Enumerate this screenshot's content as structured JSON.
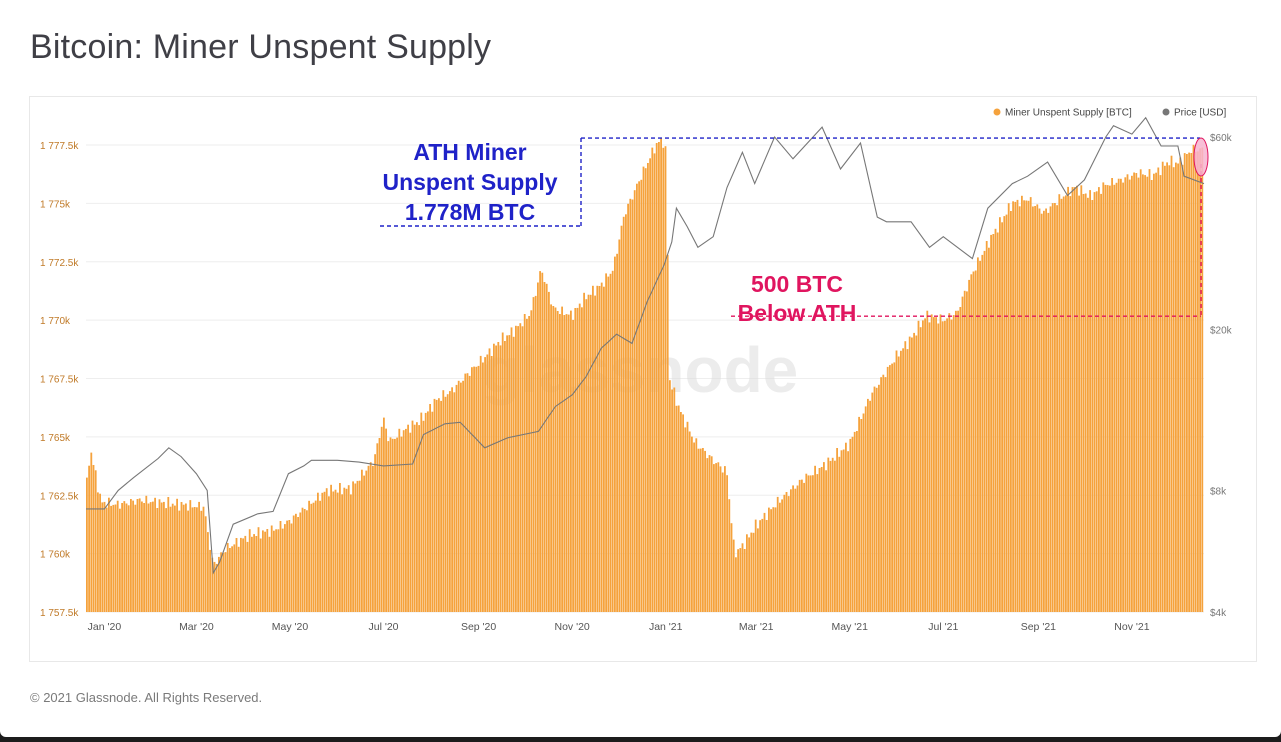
{
  "page": {
    "title": "Bitcoin: Miner Unspent Supply",
    "footer": "© 2021 Glassnode. All Rights Reserved.",
    "watermark": "glassnode"
  },
  "colors": {
    "supply": "#F5A23C",
    "price": "#777777",
    "ath_annotation": "#1F22C8",
    "below_annotation": "#E0155F"
  },
  "chart_data": {
    "type": "area",
    "title": "Bitcoin: Miner Unspent Supply",
    "legend": {
      "position": "top-right",
      "entries": [
        {
          "name": "Miner Unspent Supply [BTC]",
          "color": "#F5A23C",
          "marker": "dot"
        },
        {
          "name": "Price [USD]",
          "color": "#777777",
          "marker": "dot"
        }
      ]
    },
    "x_axis": {
      "ticks": [
        "Jan '20",
        "Mar '20",
        "May '20",
        "Jul '20",
        "Sep '20",
        "Nov '20",
        "Jan '21",
        "Mar '21",
        "May '21",
        "Jul '21",
        "Sep '21",
        "Nov '21"
      ],
      "range": [
        "2019-12-20",
        "2021-12-18"
      ]
    },
    "y_left": {
      "label": "Miner Unspent Supply [BTC]",
      "ticks": [
        "1 757.5k",
        "1 760k",
        "1 762.5k",
        "1 765k",
        "1 767.5k",
        "1 770k",
        "1 772.5k",
        "1 775k",
        "1 777.5k"
      ],
      "range": [
        1757500,
        1779000
      ]
    },
    "y_right": {
      "label": "Price [USD]",
      "scale": "log",
      "ticks": [
        "$4k",
        "$8k",
        "$20k",
        "$60k"
      ],
      "range": [
        4000,
        70000
      ]
    },
    "series": [
      {
        "name": "Miner Unspent Supply [BTC]",
        "axis": "left",
        "style": "bars",
        "points": [
          [
            "2019-12-20",
            1762500
          ],
          [
            "2019-12-23",
            1764500
          ],
          [
            "2019-12-30",
            1762200
          ],
          [
            "2020-01-10",
            1762100
          ],
          [
            "2020-01-25",
            1762300
          ],
          [
            "2020-02-05",
            1762200
          ],
          [
            "2020-02-20",
            1762100
          ],
          [
            "2020-03-06",
            1762000
          ],
          [
            "2020-03-12",
            1759500
          ],
          [
            "2020-03-20",
            1760200
          ],
          [
            "2020-04-05",
            1760800
          ],
          [
            "2020-04-20",
            1761000
          ],
          [
            "2020-05-01",
            1761400
          ],
          [
            "2020-05-12",
            1762000
          ],
          [
            "2020-05-25",
            1762700
          ],
          [
            "2020-06-10",
            1762800
          ],
          [
            "2020-06-25",
            1764000
          ],
          [
            "2020-07-01",
            1765800
          ],
          [
            "2020-07-05",
            1764800
          ],
          [
            "2020-07-15",
            1765300
          ],
          [
            "2020-07-25",
            1765700
          ],
          [
            "2020-08-05",
            1766600
          ],
          [
            "2020-08-15",
            1767000
          ],
          [
            "2020-08-25",
            1767700
          ],
          [
            "2020-09-05",
            1768400
          ],
          [
            "2020-09-15",
            1769100
          ],
          [
            "2020-09-25",
            1769600
          ],
          [
            "2020-10-05",
            1770300
          ],
          [
            "2020-10-12",
            1772200
          ],
          [
            "2020-10-20",
            1770500
          ],
          [
            "2020-11-01",
            1770200
          ],
          [
            "2020-11-10",
            1771000
          ],
          [
            "2020-11-20",
            1771500
          ],
          [
            "2020-11-28",
            1772200
          ],
          [
            "2020-12-05",
            1774500
          ],
          [
            "2020-12-15",
            1776000
          ],
          [
            "2020-12-25",
            1777400
          ],
          [
            "2020-12-30",
            1777800
          ],
          [
            "2021-01-02",
            1776900
          ],
          [
            "2021-01-03",
            1767600
          ],
          [
            "2021-01-10",
            1766200
          ],
          [
            "2021-01-20",
            1764800
          ],
          [
            "2021-02-01",
            1764000
          ],
          [
            "2021-02-10",
            1763500
          ],
          [
            "2021-02-15",
            1760000
          ],
          [
            "2021-02-20",
            1760300
          ],
          [
            "2021-03-01",
            1761200
          ],
          [
            "2021-03-15",
            1762200
          ],
          [
            "2021-04-01",
            1763200
          ],
          [
            "2021-04-15",
            1763800
          ],
          [
            "2021-05-01",
            1764700
          ],
          [
            "2021-05-15",
            1766800
          ],
          [
            "2021-05-22",
            1767500
          ],
          [
            "2021-06-01",
            1768500
          ],
          [
            "2021-06-10",
            1769200
          ],
          [
            "2021-06-20",
            1770200
          ],
          [
            "2021-07-01",
            1770000
          ],
          [
            "2021-07-10",
            1770300
          ],
          [
            "2021-07-20",
            1772000
          ],
          [
            "2021-08-01",
            1773500
          ],
          [
            "2021-08-15",
            1775000
          ],
          [
            "2021-08-25",
            1775200
          ],
          [
            "2021-09-05",
            1774600
          ],
          [
            "2021-09-15",
            1775200
          ],
          [
            "2021-09-25",
            1775700
          ],
          [
            "2021-10-05",
            1775300
          ],
          [
            "2021-10-15",
            1775800
          ],
          [
            "2021-10-25",
            1776000
          ],
          [
            "2021-11-05",
            1776300
          ],
          [
            "2021-11-15",
            1776200
          ],
          [
            "2021-11-25",
            1776800
          ],
          [
            "2021-12-01",
            1776700
          ],
          [
            "2021-12-10",
            1777300
          ],
          [
            "2021-12-18",
            1777300
          ]
        ]
      },
      {
        "name": "Price [USD]",
        "axis": "right",
        "style": "line",
        "points": [
          [
            "2019-12-20",
            7200
          ],
          [
            "2020-01-01",
            7200
          ],
          [
            "2020-01-10",
            8000
          ],
          [
            "2020-01-20",
            8600
          ],
          [
            "2020-02-05",
            9600
          ],
          [
            "2020-02-12",
            10200
          ],
          [
            "2020-02-20",
            9700
          ],
          [
            "2020-03-01",
            8800
          ],
          [
            "2020-03-08",
            8000
          ],
          [
            "2020-03-12",
            5000
          ],
          [
            "2020-03-16",
            5300
          ],
          [
            "2020-03-25",
            6600
          ],
          [
            "2020-04-10",
            7000
          ],
          [
            "2020-04-20",
            7100
          ],
          [
            "2020-04-30",
            8800
          ],
          [
            "2020-05-10",
            9200
          ],
          [
            "2020-05-15",
            9500
          ],
          [
            "2020-06-01",
            9500
          ],
          [
            "2020-06-15",
            9400
          ],
          [
            "2020-07-01",
            9200
          ],
          [
            "2020-07-20",
            9300
          ],
          [
            "2020-07-27",
            11000
          ],
          [
            "2020-08-10",
            11700
          ],
          [
            "2020-08-20",
            11800
          ],
          [
            "2020-09-05",
            10200
          ],
          [
            "2020-09-20",
            10800
          ],
          [
            "2020-10-10",
            11200
          ],
          [
            "2020-10-21",
            12900
          ],
          [
            "2020-11-01",
            13800
          ],
          [
            "2020-11-10",
            15300
          ],
          [
            "2020-11-20",
            18000
          ],
          [
            "2020-11-30",
            19500
          ],
          [
            "2020-12-10",
            18500
          ],
          [
            "2020-12-20",
            23500
          ],
          [
            "2020-12-31",
            29000
          ],
          [
            "2021-01-05",
            33000
          ],
          [
            "2021-01-08",
            40000
          ],
          [
            "2021-01-15",
            36000
          ],
          [
            "2021-01-22",
            32000
          ],
          [
            "2021-02-01",
            34000
          ],
          [
            "2021-02-10",
            45000
          ],
          [
            "2021-02-20",
            55000
          ],
          [
            "2021-02-28",
            46000
          ],
          [
            "2021-03-13",
            60000
          ],
          [
            "2021-03-25",
            53000
          ],
          [
            "2021-04-13",
            63500
          ],
          [
            "2021-04-25",
            50000
          ],
          [
            "2021-05-08",
            58000
          ],
          [
            "2021-05-19",
            38000
          ],
          [
            "2021-05-25",
            37000
          ],
          [
            "2021-06-10",
            37000
          ],
          [
            "2021-06-22",
            32000
          ],
          [
            "2021-07-01",
            34000
          ],
          [
            "2021-07-20",
            30000
          ],
          [
            "2021-07-30",
            40000
          ],
          [
            "2021-08-15",
            46000
          ],
          [
            "2021-08-25",
            48000
          ],
          [
            "2021-09-07",
            52000
          ],
          [
            "2021-09-20",
            43000
          ],
          [
            "2021-10-01",
            47000
          ],
          [
            "2021-10-15",
            60000
          ],
          [
            "2021-10-20",
            64000
          ],
          [
            "2021-11-01",
            61000
          ],
          [
            "2021-11-10",
            67000
          ],
          [
            "2021-11-20",
            57000
          ],
          [
            "2021-12-01",
            57000
          ],
          [
            "2021-12-05",
            48000
          ],
          [
            "2021-12-18",
            46000
          ]
        ]
      }
    ],
    "annotations": [
      {
        "text": [
          "ATH Miner",
          "Unspent Supply",
          "1.778M BTC"
        ],
        "color": "#1F22C8",
        "style": "dashed-box",
        "value": 1777800
      },
      {
        "text": [
          "500 BTC",
          "Below ATH"
        ],
        "color": "#E0155F",
        "style": "dashed-bracket",
        "value": 1770000
      }
    ]
  }
}
